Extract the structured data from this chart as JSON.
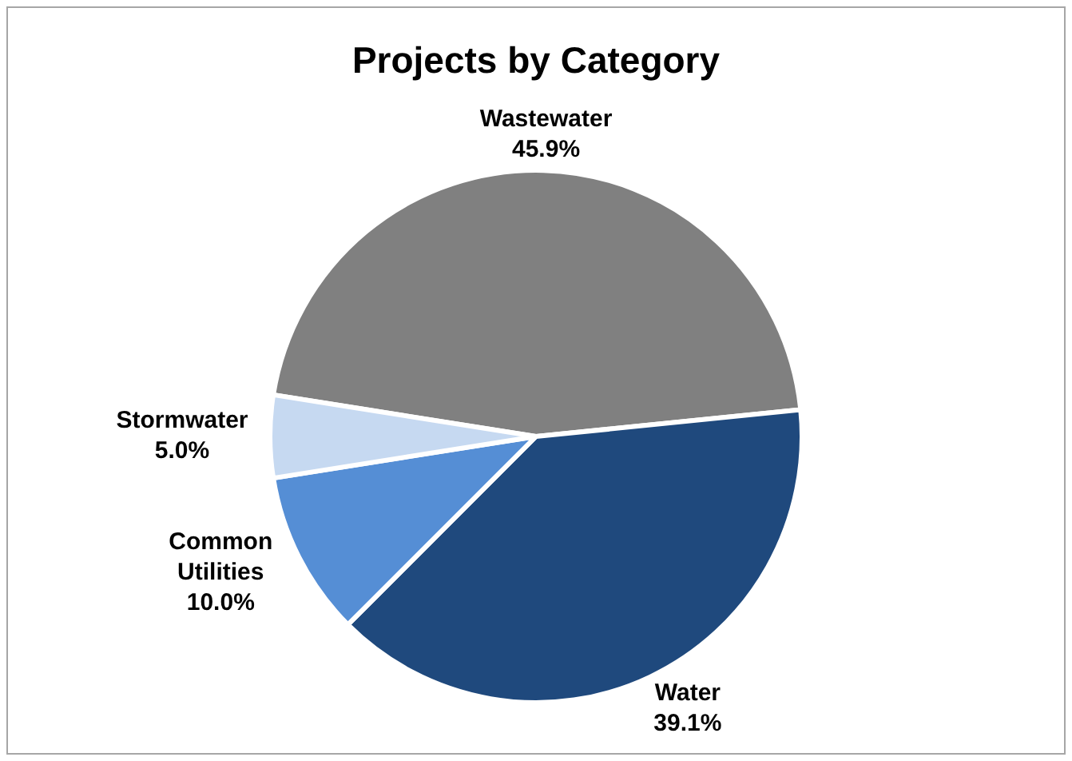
{
  "chart_data": {
    "type": "pie",
    "title": "Projects by Category",
    "categories": [
      "Wastewater",
      "Water",
      "Common Utilities",
      "Stormwater"
    ],
    "values": [
      45.9,
      39.1,
      10.0,
      5.0
    ],
    "value_labels": [
      "45.9%",
      "39.1%",
      "10.0%",
      "5.0%"
    ],
    "colors": [
      "#808080",
      "#1f497d",
      "#558ed5",
      "#c6d9f1"
    ],
    "legend": false
  }
}
